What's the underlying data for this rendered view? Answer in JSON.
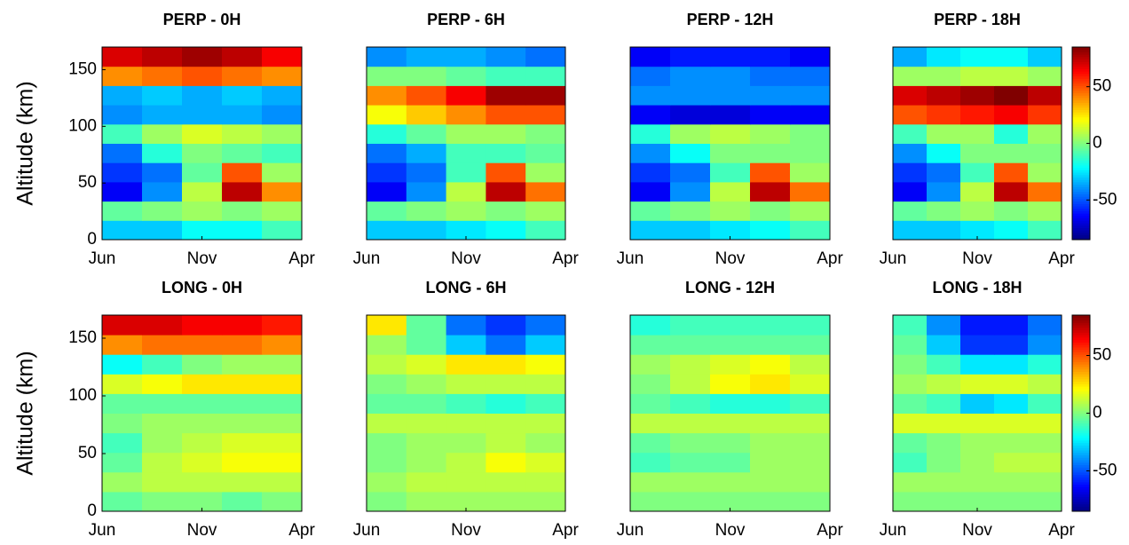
{
  "chart_data": [
    {
      "type": "heatmap",
      "title": "PERP - 0H",
      "ylabel": "Altitude (km)",
      "colormap": "jet",
      "zlim": [
        -85,
        85
      ],
      "xbins": [
        0,
        2,
        4,
        6,
        8,
        10
      ],
      "ybins": [
        0,
        17,
        34,
        51,
        68,
        85,
        102,
        119,
        136,
        153,
        170
      ],
      "xlim": [
        0,
        10
      ],
      "ylim": [
        0,
        170
      ],
      "xticks": [
        {
          "value": 0,
          "label": "Jun"
        },
        {
          "value": 5,
          "label": "Nov"
        },
        {
          "value": 10,
          "label": "Apr"
        }
      ],
      "yticks": [
        0,
        50,
        100,
        150
      ],
      "z": [
        [
          -30,
          -30,
          -20,
          -20,
          -10
        ],
        [
          -5,
          0,
          5,
          0,
          5
        ],
        [
          -65,
          -40,
          10,
          75,
          40
        ],
        [
          -55,
          -45,
          -5,
          50,
          5
        ],
        [
          -45,
          -15,
          0,
          -5,
          -10
        ],
        [
          -10,
          5,
          15,
          10,
          5
        ],
        [
          -40,
          -35,
          -35,
          -35,
          -40
        ],
        [
          -35,
          -30,
          -35,
          -30,
          -35
        ],
        [
          40,
          45,
          50,
          45,
          40
        ],
        [
          70,
          75,
          80,
          75,
          65
        ]
      ]
    },
    {
      "type": "heatmap",
      "title": "PERP - 6H",
      "colormap": "jet",
      "zlim": [
        -85,
        85
      ],
      "xbins": [
        0,
        2,
        4,
        6,
        8,
        10
      ],
      "ybins": [
        0,
        17,
        34,
        51,
        68,
        85,
        102,
        119,
        136,
        153,
        170
      ],
      "xlim": [
        0,
        10
      ],
      "ylim": [
        0,
        170
      ],
      "xticks": [
        {
          "value": 0,
          "label": "Jun"
        },
        {
          "value": 5,
          "label": "Nov"
        },
        {
          "value": 10,
          "label": "Apr"
        }
      ],
      "z": [
        [
          -30,
          -30,
          -25,
          -20,
          -10
        ],
        [
          -5,
          0,
          5,
          0,
          5
        ],
        [
          -65,
          -40,
          10,
          75,
          45
        ],
        [
          -55,
          -45,
          -10,
          50,
          5
        ],
        [
          -45,
          -35,
          -10,
          -10,
          -5
        ],
        [
          -15,
          -5,
          5,
          5,
          0
        ],
        [
          20,
          30,
          40,
          50,
          50
        ],
        [
          40,
          50,
          65,
          80,
          80
        ],
        [
          0,
          0,
          -5,
          -10,
          -10
        ],
        [
          -40,
          -35,
          -35,
          -40,
          -45
        ]
      ]
    },
    {
      "type": "heatmap",
      "title": "PERP - 12H",
      "colormap": "jet",
      "zlim": [
        -85,
        85
      ],
      "xbins": [
        0,
        2,
        4,
        6,
        8,
        10
      ],
      "ybins": [
        0,
        17,
        34,
        51,
        68,
        85,
        102,
        119,
        136,
        153,
        170
      ],
      "xlim": [
        0,
        10
      ],
      "ylim": [
        0,
        170
      ],
      "xticks": [
        {
          "value": 0,
          "label": "Jun"
        },
        {
          "value": 5,
          "label": "Nov"
        },
        {
          "value": 10,
          "label": "Apr"
        }
      ],
      "z": [
        [
          -30,
          -30,
          -25,
          -20,
          -10
        ],
        [
          -5,
          0,
          5,
          0,
          5
        ],
        [
          -65,
          -40,
          10,
          75,
          45
        ],
        [
          -55,
          -45,
          -10,
          50,
          5
        ],
        [
          -40,
          -20,
          0,
          0,
          0
        ],
        [
          -15,
          5,
          10,
          5,
          0
        ],
        [
          -65,
          -70,
          -70,
          -65,
          -65
        ],
        [
          -40,
          -40,
          -40,
          -40,
          -40
        ],
        [
          -45,
          -40,
          -40,
          -45,
          -45
        ],
        [
          -65,
          -60,
          -60,
          -60,
          -65
        ]
      ]
    },
    {
      "type": "heatmap",
      "title": "PERP - 18H",
      "colormap": "jet",
      "zlim": [
        -85,
        85
      ],
      "xbins": [
        0,
        2,
        4,
        6,
        8,
        10
      ],
      "ybins": [
        0,
        17,
        34,
        51,
        68,
        85,
        102,
        119,
        136,
        153,
        170
      ],
      "xlim": [
        0,
        10
      ],
      "ylim": [
        0,
        170
      ],
      "xticks": [
        {
          "value": 0,
          "label": "Jun"
        },
        {
          "value": 5,
          "label": "Nov"
        },
        {
          "value": 10,
          "label": "Apr"
        }
      ],
      "colorbar": {
        "ticks": [
          50,
          0,
          -50
        ]
      },
      "z": [
        [
          -30,
          -30,
          -25,
          -20,
          -10
        ],
        [
          -5,
          0,
          5,
          0,
          5
        ],
        [
          -65,
          -40,
          10,
          75,
          45
        ],
        [
          -55,
          -45,
          -10,
          50,
          5
        ],
        [
          -40,
          -20,
          0,
          0,
          0
        ],
        [
          -10,
          5,
          5,
          -15,
          5
        ],
        [
          50,
          55,
          60,
          65,
          55
        ],
        [
          70,
          75,
          80,
          85,
          75
        ],
        [
          5,
          5,
          10,
          10,
          5
        ],
        [
          -35,
          -25,
          -20,
          -20,
          -30
        ]
      ]
    },
    {
      "type": "heatmap",
      "title": "LONG - 0H",
      "ylabel": "Altitude (km)",
      "colormap": "jet",
      "zlim": [
        -85,
        85
      ],
      "xbins": [
        0,
        2,
        4,
        6,
        8,
        10
      ],
      "ybins": [
        0,
        17,
        34,
        51,
        68,
        85,
        102,
        119,
        136,
        153,
        170
      ],
      "xlim": [
        0,
        10
      ],
      "ylim": [
        0,
        170
      ],
      "xticks": [
        {
          "value": 0,
          "label": "Jun"
        },
        {
          "value": 5,
          "label": "Nov"
        },
        {
          "value": 10,
          "label": "Apr"
        }
      ],
      "yticks": [
        0,
        50,
        100,
        150
      ],
      "z": [
        [
          -5,
          0,
          0,
          -5,
          0
        ],
        [
          5,
          10,
          10,
          10,
          10
        ],
        [
          -5,
          10,
          15,
          20,
          20
        ],
        [
          -10,
          5,
          10,
          15,
          15
        ],
        [
          0,
          5,
          5,
          5,
          5
        ],
        [
          -5,
          -5,
          -5,
          -5,
          -5
        ],
        [
          15,
          20,
          25,
          25,
          25
        ],
        [
          -20,
          -10,
          0,
          5,
          5
        ],
        [
          40,
          45,
          45,
          45,
          40
        ],
        [
          70,
          70,
          65,
          65,
          60
        ]
      ]
    },
    {
      "type": "heatmap",
      "title": "LONG - 6H",
      "colormap": "jet",
      "zlim": [
        -85,
        85
      ],
      "xbins": [
        0,
        2,
        4,
        6,
        8,
        10
      ],
      "ybins": [
        0,
        17,
        34,
        51,
        68,
        85,
        102,
        119,
        136,
        153,
        170
      ],
      "xlim": [
        0,
        10
      ],
      "ylim": [
        0,
        170
      ],
      "xticks": [
        {
          "value": 0,
          "label": "Jun"
        },
        {
          "value": 5,
          "label": "Nov"
        },
        {
          "value": 10,
          "label": "Apr"
        }
      ],
      "z": [
        [
          0,
          5,
          5,
          5,
          5
        ],
        [
          5,
          10,
          10,
          10,
          10
        ],
        [
          0,
          5,
          10,
          20,
          15
        ],
        [
          0,
          5,
          5,
          10,
          5
        ],
        [
          10,
          10,
          10,
          10,
          10
        ],
        [
          -5,
          -5,
          -10,
          -15,
          -10
        ],
        [
          0,
          5,
          10,
          10,
          10
        ],
        [
          10,
          15,
          25,
          25,
          20
        ],
        [
          5,
          -5,
          -30,
          -45,
          -30
        ],
        [
          25,
          -5,
          -45,
          -55,
          -45
        ]
      ]
    },
    {
      "type": "heatmap",
      "title": "LONG - 12H",
      "colormap": "jet",
      "zlim": [
        -85,
        85
      ],
      "xbins": [
        0,
        2,
        4,
        6,
        8,
        10
      ],
      "ybins": [
        0,
        17,
        34,
        51,
        68,
        85,
        102,
        119,
        136,
        153,
        170
      ],
      "xlim": [
        0,
        10
      ],
      "ylim": [
        0,
        170
      ],
      "xticks": [
        {
          "value": 0,
          "label": "Jun"
        },
        {
          "value": 5,
          "label": "Nov"
        },
        {
          "value": 10,
          "label": "Apr"
        }
      ],
      "z": [
        [
          0,
          0,
          0,
          0,
          0
        ],
        [
          5,
          5,
          5,
          5,
          5
        ],
        [
          -10,
          -5,
          -5,
          5,
          5
        ],
        [
          -5,
          0,
          0,
          5,
          5
        ],
        [
          10,
          10,
          10,
          10,
          10
        ],
        [
          -5,
          -10,
          -15,
          -15,
          -10
        ],
        [
          0,
          10,
          20,
          25,
          15
        ],
        [
          5,
          10,
          15,
          20,
          10
        ],
        [
          -5,
          -5,
          -5,
          -5,
          -5
        ],
        [
          -15,
          -10,
          -10,
          -10,
          -10
        ]
      ]
    },
    {
      "type": "heatmap",
      "title": "LONG - 18H",
      "colormap": "jet",
      "zlim": [
        -85,
        85
      ],
      "xbins": [
        0,
        2,
        4,
        6,
        8,
        10
      ],
      "ybins": [
        0,
        17,
        34,
        51,
        68,
        85,
        102,
        119,
        136,
        153,
        170
      ],
      "xlim": [
        0,
        10
      ],
      "ylim": [
        0,
        170
      ],
      "xticks": [
        {
          "value": 0,
          "label": "Jun"
        },
        {
          "value": 5,
          "label": "Nov"
        },
        {
          "value": 10,
          "label": "Apr"
        }
      ],
      "colorbar": {
        "ticks": [
          50,
          0,
          -50
        ]
      },
      "z": [
        [
          0,
          0,
          0,
          0,
          0
        ],
        [
          5,
          5,
          5,
          5,
          5
        ],
        [
          -10,
          0,
          5,
          10,
          10
        ],
        [
          -5,
          0,
          5,
          5,
          5
        ],
        [
          15,
          15,
          15,
          15,
          15
        ],
        [
          -5,
          -10,
          -30,
          -25,
          -10
        ],
        [
          5,
          10,
          15,
          15,
          10
        ],
        [
          0,
          -10,
          -25,
          -25,
          -15
        ],
        [
          -5,
          -30,
          -55,
          -55,
          -40
        ],
        [
          -10,
          -40,
          -60,
          -60,
          -45
        ]
      ]
    }
  ]
}
